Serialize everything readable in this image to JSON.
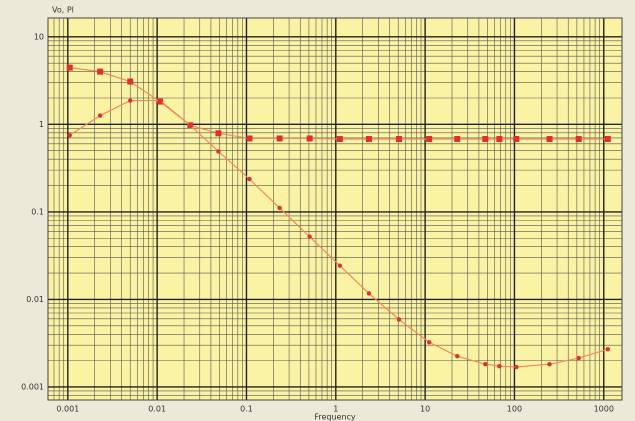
{
  "chart_data": {
    "type": "line",
    "xlabel": "Frequency",
    "ylabel": "Vo, Pl",
    "x": [
      0.00105,
      0.0023,
      0.005,
      0.0108,
      0.0235,
      0.0485,
      0.108,
      0.235,
      0.51,
      1.11,
      2.35,
      5.1,
      11.1,
      22.9,
      47.2,
      67.8,
      105,
      247,
      524,
      1110
    ],
    "series": [
      {
        "color": "#e0302a",
        "marker": "square",
        "values": [
          4.45,
          4.0,
          3.08,
          1.82,
          0.975,
          0.79,
          0.69,
          0.69,
          0.69,
          0.68,
          0.68,
          0.68,
          0.68,
          0.68,
          0.68,
          0.68,
          0.68,
          0.68,
          0.68,
          0.68
        ]
      },
      {
        "color": "#e0302a",
        "marker": "circle",
        "values": [
          0.75,
          1.26,
          1.87,
          1.87,
          0.975,
          0.49,
          0.237,
          0.111,
          0.052,
          0.0243,
          0.0117,
          0.0059,
          0.00324,
          0.00225,
          0.00182,
          0.00173,
          0.00169,
          0.00182,
          0.00214,
          0.0027
        ]
      }
    ],
    "xscale": "log",
    "yscale": "log",
    "xlim": [
      0.0006,
      1600
    ],
    "ylim": [
      0.00071,
      16.4
    ],
    "xticks": [
      0.001,
      0.01,
      0.1,
      1,
      10,
      100,
      1000
    ],
    "yticks": [
      0.001,
      0.01,
      0.1,
      1,
      10
    ],
    "grid": true,
    "background": "#fbf3a4",
    "line_color": "#f08a5a"
  }
}
